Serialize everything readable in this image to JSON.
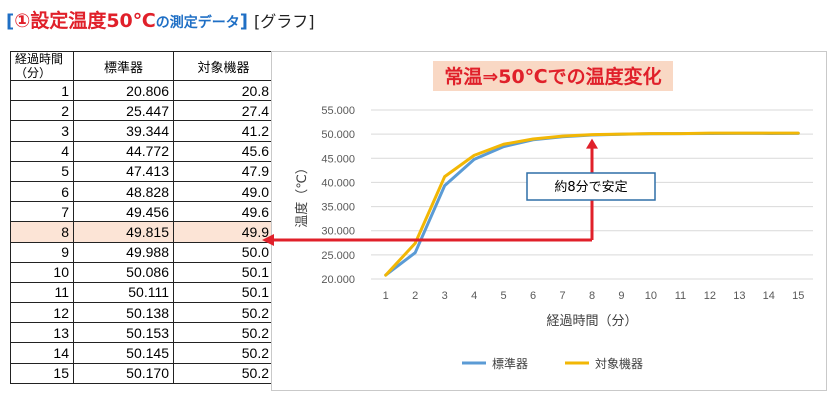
{
  "heading": {
    "open_bracket": "[",
    "main": "①設定温度50℃",
    "sub": "の測定データ",
    "close_bracket": "]",
    "graph_label": "[グラフ]"
  },
  "table": {
    "headers": [
      "経過時間（分）",
      "標準器",
      "対象機器"
    ],
    "header_line1": "経過時間",
    "header_line2": "（分）",
    "rows": [
      [
        "1",
        "20.806",
        "20.8"
      ],
      [
        "2",
        "25.447",
        "27.4"
      ],
      [
        "3",
        "39.344",
        "41.2"
      ],
      [
        "4",
        "44.772",
        "45.6"
      ],
      [
        "5",
        "47.413",
        "47.9"
      ],
      [
        "6",
        "48.828",
        "49.0"
      ],
      [
        "7",
        "49.456",
        "49.6"
      ],
      [
        "8",
        "49.815",
        "49.9"
      ],
      [
        "9",
        "49.988",
        "50.0"
      ],
      [
        "10",
        "50.086",
        "50.1"
      ],
      [
        "11",
        "50.111",
        "50.1"
      ],
      [
        "12",
        "50.138",
        "50.2"
      ],
      [
        "13",
        "50.153",
        "50.2"
      ],
      [
        "14",
        "50.145",
        "50.2"
      ],
      [
        "15",
        "50.170",
        "50.2"
      ]
    ],
    "highlight_row": 8
  },
  "annotation": "約8分で安定",
  "chart_data": {
    "type": "line",
    "title": "常温⇒50℃での温度変化",
    "xlabel": "経過時間（分）",
    "ylabel": "温度（℃）",
    "x": [
      1,
      2,
      3,
      4,
      5,
      6,
      7,
      8,
      9,
      10,
      11,
      12,
      13,
      14,
      15
    ],
    "ylim": [
      20,
      55
    ],
    "yticks": [
      "20.000",
      "25.000",
      "30.000",
      "35.000",
      "40.000",
      "45.000",
      "50.000",
      "55.000"
    ],
    "grid": true,
    "legend_position": "bottom",
    "series": [
      {
        "name": "標準器",
        "color": "#5b9bd5",
        "values": [
          20.806,
          25.447,
          39.344,
          44.772,
          47.413,
          48.828,
          49.456,
          49.815,
          49.988,
          50.086,
          50.111,
          50.138,
          50.153,
          50.145,
          50.17
        ]
      },
      {
        "name": "対象機器",
        "color": "#f2b705",
        "values": [
          20.8,
          27.4,
          41.2,
          45.6,
          47.9,
          49.0,
          49.6,
          49.9,
          50.0,
          50.1,
          50.1,
          50.2,
          50.2,
          50.2,
          50.2
        ]
      }
    ],
    "title_bg": "#f9d8c4",
    "title_color": "#e0202a",
    "arrow_color": "#e0202a"
  }
}
